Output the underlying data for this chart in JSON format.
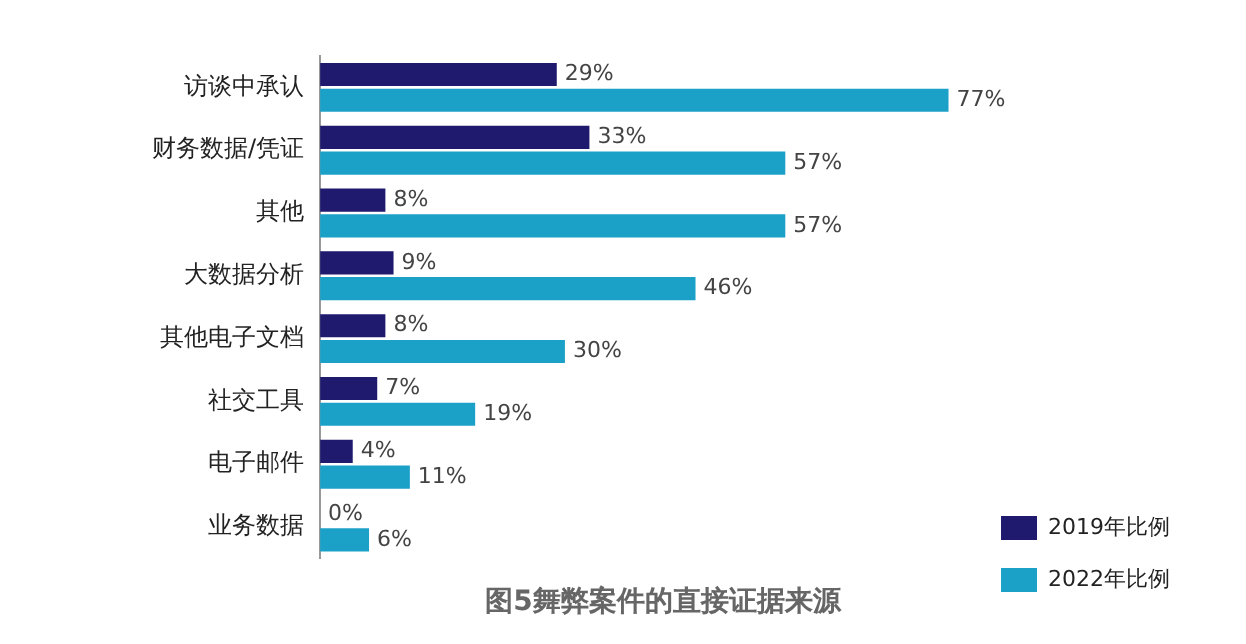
{
  "chart_data": {
    "type": "bar",
    "orientation": "horizontal",
    "title": "图5舞弊案件的直接证据来源",
    "categories": [
      "访谈中承认",
      "财务数据/凭证",
      "其他",
      "大数据分析",
      "其他电子文档",
      "社交工具",
      "电子邮件",
      "业务数据"
    ],
    "series": [
      {
        "name": "2019年比例",
        "color": "#1f1a6e",
        "values": [
          29,
          33,
          8,
          9,
          8,
          7,
          4,
          0
        ],
        "value_labels": [
          "29%",
          "33%",
          "8%",
          "9%",
          "8%",
          "7%",
          "4%",
          "0%"
        ]
      },
      {
        "name": "2022年比例",
        "color": "#1ba1c8",
        "values": [
          77,
          57,
          57,
          46,
          30,
          19,
          11,
          6
        ],
        "value_labels": [
          "77%",
          "57%",
          "57%",
          "46%",
          "30%",
          "19%",
          "11%",
          "6%"
        ]
      }
    ],
    "legend": "bottom right"
  }
}
